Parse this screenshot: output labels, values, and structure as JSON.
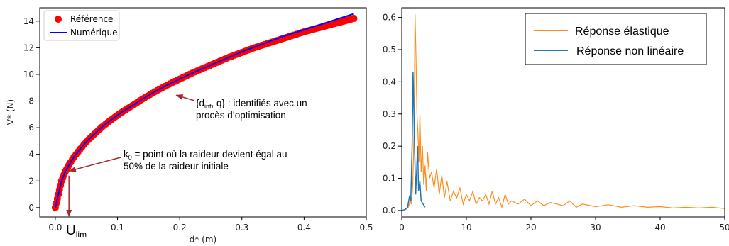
{
  "chart_data": [
    {
      "type": "scatter",
      "xlabel": "d* (m)",
      "ylabel": "V* (N)",
      "xlim": [
        -0.025,
        0.5
      ],
      "ylim": [
        -0.7,
        15
      ],
      "xticks": [
        "0.0",
        "0.1",
        "0.2",
        "0.3",
        "0.4",
        "0.5"
      ],
      "yticks": [
        "0",
        "2",
        "4",
        "6",
        "8",
        "10",
        "12",
        "14"
      ],
      "legend_position": "top-left",
      "grid": false,
      "series": [
        {
          "name": "Référence",
          "style": "markers",
          "color": "#ff0000",
          "x": [
            0.0,
            0.005,
            0.01,
            0.016,
            0.022,
            0.03,
            0.04,
            0.05,
            0.06,
            0.075,
            0.09,
            0.105,
            0.12,
            0.14,
            0.16,
            0.18,
            0.2,
            0.22,
            0.24,
            0.26,
            0.28,
            0.3,
            0.32,
            0.34,
            0.36,
            0.38,
            0.4,
            0.42,
            0.44,
            0.46,
            0.48
          ],
          "y": [
            0.0,
            1.0,
            2.0,
            2.7,
            3.2,
            3.8,
            4.4,
            4.95,
            5.4,
            6.05,
            6.6,
            7.1,
            7.55,
            8.15,
            8.7,
            9.2,
            9.65,
            10.1,
            10.5,
            10.9,
            11.3,
            11.65,
            12.0,
            12.3,
            12.6,
            12.9,
            13.2,
            13.45,
            13.7,
            13.95,
            14.2
          ]
        },
        {
          "name": "Numérique",
          "style": "line",
          "color": "#0000ff",
          "x": [
            0.0,
            0.005,
            0.01,
            0.016,
            0.022,
            0.03,
            0.04,
            0.05,
            0.06,
            0.075,
            0.09,
            0.105,
            0.12,
            0.14,
            0.16,
            0.18,
            0.2,
            0.22,
            0.24,
            0.26,
            0.28,
            0.3,
            0.32,
            0.34,
            0.36,
            0.38,
            0.4,
            0.42,
            0.44,
            0.46,
            0.48
          ],
          "y": [
            0.0,
            1.0,
            2.0,
            2.7,
            3.2,
            3.8,
            4.4,
            4.95,
            5.4,
            6.05,
            6.6,
            7.1,
            7.55,
            8.15,
            8.7,
            9.2,
            9.65,
            10.1,
            10.5,
            10.9,
            11.3,
            11.7,
            12.05,
            12.4,
            12.75,
            13.05,
            13.35,
            13.65,
            13.95,
            14.25,
            14.55
          ]
        }
      ],
      "annotations": [
        {
          "text_before": "{d",
          "text_sub": "inf",
          "text_after": ", q} : identifiés avec un",
          "line2": "procès d’optimisation",
          "points_to": [
            0.19,
            8.6
          ]
        },
        {
          "text_before": "k",
          "text_sub": "0",
          "text_after": " = point où la raideur devient égal au",
          "line2": "50% de la raideur initiale",
          "points_to": [
            0.016,
            2.7
          ]
        },
        {
          "text_before": "U",
          "text_sub": "lim",
          "text_after": "",
          "line2": "",
          "points_to": [
            0.022,
            0.0
          ]
        }
      ]
    },
    {
      "type": "line",
      "xlim": [
        0,
        50
      ],
      "ylim": [
        -0.02,
        0.63
      ],
      "xticks": [
        "0",
        "10",
        "20",
        "30",
        "40",
        "50"
      ],
      "yticks": [
        "0.0",
        "0.1",
        "0.2",
        "0.3",
        "0.4",
        "0.5",
        "0.6"
      ],
      "legend_position": "top-right",
      "grid": false,
      "series": [
        {
          "name": "Réponse élastique",
          "color": "#ff8c1a",
          "x": [
            0,
            0.6,
            1.0,
            1.3,
            1.5,
            1.7,
            1.9,
            2.05,
            2.2,
            2.35,
            2.5,
            2.65,
            2.8,
            3.0,
            3.2,
            3.4,
            3.6,
            3.8,
            4.0,
            4.3,
            4.6,
            5.0,
            5.4,
            5.8,
            6.2,
            6.6,
            7.0,
            7.5,
            8.0,
            8.5,
            9.0,
            9.5,
            10.0,
            10.5,
            11.0,
            11.5,
            12.0,
            12.5,
            13.0,
            13.5,
            14.0,
            14.5,
            15.0,
            15.5,
            16.0,
            16.5,
            17.0,
            18.0,
            19.0,
            20.0,
            21.0,
            22.0,
            23.0,
            24.0,
            25.0,
            26.0,
            27.0,
            28.0,
            30.0,
            32.0,
            34.0,
            36.0,
            38.0,
            40.0,
            42.0,
            44.0,
            46.0,
            48.0,
            50.0
          ],
          "y": [
            0.0,
            0.003,
            0.01,
            0.03,
            0.02,
            0.08,
            0.25,
            0.61,
            0.48,
            0.3,
            0.24,
            0.15,
            0.3,
            0.12,
            0.2,
            0.08,
            0.14,
            0.06,
            0.18,
            0.1,
            0.12,
            0.07,
            0.13,
            0.05,
            0.11,
            0.04,
            0.09,
            0.03,
            0.06,
            0.04,
            0.07,
            0.02,
            0.05,
            0.03,
            0.06,
            0.02,
            0.04,
            0.03,
            0.05,
            0.02,
            0.06,
            0.02,
            0.04,
            0.01,
            0.05,
            0.02,
            0.03,
            0.02,
            0.035,
            0.015,
            0.03,
            0.015,
            0.025,
            0.02,
            0.015,
            0.03,
            0.01,
            0.02,
            0.012,
            0.018,
            0.01,
            0.015,
            0.01,
            0.012,
            0.008,
            0.01,
            0.008,
            0.01,
            0.006
          ]
        },
        {
          "name": "Réponse non linéaire",
          "color": "#1f77b4",
          "x": [
            0,
            0.5,
            0.9,
            1.2,
            1.4,
            1.6,
            1.75,
            1.9,
            2.0,
            2.15,
            2.3,
            2.45,
            2.6,
            2.8,
            3.0,
            3.3,
            3.6
          ],
          "y": [
            0.0,
            0.003,
            0.01,
            0.045,
            0.03,
            0.2,
            0.43,
            0.28,
            0.18,
            0.05,
            0.12,
            0.2,
            0.06,
            0.09,
            0.03,
            0.02,
            0.01
          ]
        }
      ]
    }
  ]
}
